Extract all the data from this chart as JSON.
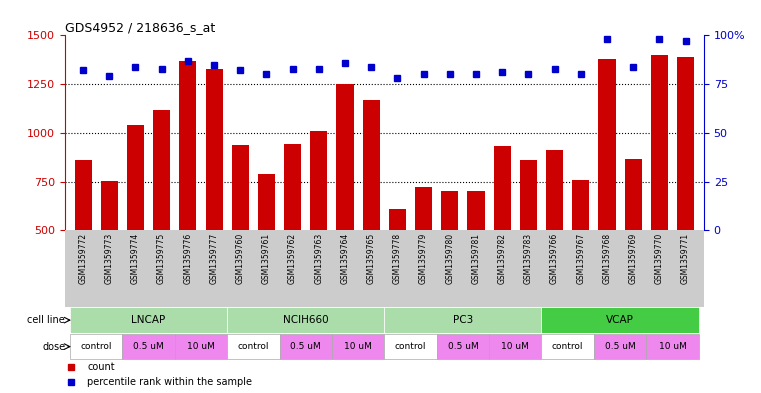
{
  "title": "GDS4952 / 218636_s_at",
  "samples": [
    "GSM1359772",
    "GSM1359773",
    "GSM1359774",
    "GSM1359775",
    "GSM1359776",
    "GSM1359777",
    "GSM1359760",
    "GSM1359761",
    "GSM1359762",
    "GSM1359763",
    "GSM1359764",
    "GSM1359765",
    "GSM1359778",
    "GSM1359779",
    "GSM1359780",
    "GSM1359781",
    "GSM1359782",
    "GSM1359783",
    "GSM1359766",
    "GSM1359767",
    "GSM1359768",
    "GSM1359769",
    "GSM1359770",
    "GSM1359771"
  ],
  "counts": [
    860,
    755,
    1040,
    1115,
    1370,
    1330,
    940,
    790,
    945,
    1010,
    1250,
    1170,
    610,
    720,
    700,
    700,
    935,
    860,
    910,
    760,
    1380,
    865,
    1400,
    1390
  ],
  "percentiles": [
    82,
    79,
    84,
    83,
    87,
    85,
    82,
    80,
    83,
    83,
    86,
    84,
    78,
    80,
    80,
    80,
    81,
    80,
    83,
    80,
    98,
    84,
    98,
    97
  ],
  "cell_lines": [
    {
      "name": "LNCAP",
      "start": 0,
      "end": 6,
      "color": "#aaddaa"
    },
    {
      "name": "NCIH660",
      "start": 6,
      "end": 12,
      "color": "#aaddaa"
    },
    {
      "name": "PC3",
      "start": 12,
      "end": 18,
      "color": "#aaddaa"
    },
    {
      "name": "VCAP",
      "start": 18,
      "end": 24,
      "color": "#44cc44"
    }
  ],
  "doses": [
    {
      "label": "control",
      "start": 0,
      "end": 2,
      "color": "#ffffff"
    },
    {
      "label": "0.5 uM",
      "start": 2,
      "end": 4,
      "color": "#ee88ee"
    },
    {
      "label": "10 uM",
      "start": 4,
      "end": 6,
      "color": "#ee88ee"
    },
    {
      "label": "control",
      "start": 6,
      "end": 8,
      "color": "#ffffff"
    },
    {
      "label": "0.5 uM",
      "start": 8,
      "end": 10,
      "color": "#ee88ee"
    },
    {
      "label": "10 uM",
      "start": 10,
      "end": 12,
      "color": "#ee88ee"
    },
    {
      "label": "control",
      "start": 12,
      "end": 14,
      "color": "#ffffff"
    },
    {
      "label": "0.5 uM",
      "start": 14,
      "end": 16,
      "color": "#ee88ee"
    },
    {
      "label": "10 uM",
      "start": 16,
      "end": 18,
      "color": "#ee88ee"
    },
    {
      "label": "control",
      "start": 18,
      "end": 20,
      "color": "#ffffff"
    },
    {
      "label": "0.5 uM",
      "start": 20,
      "end": 22,
      "color": "#ee88ee"
    },
    {
      "label": "10 uM",
      "start": 22,
      "end": 24,
      "color": "#ee88ee"
    }
  ],
  "bar_color": "#CC0000",
  "dot_color": "#0000CC",
  "ylim_left": [
    500,
    1500
  ],
  "ylim_right": [
    0,
    100
  ],
  "yticks_left": [
    500,
    750,
    1000,
    1250,
    1500
  ],
  "yticks_right": [
    0,
    25,
    50,
    75,
    100
  ],
  "grid_values": [
    750,
    1000,
    1250
  ],
  "background_color": "#ffffff",
  "sample_bg_color": "#cccccc"
}
